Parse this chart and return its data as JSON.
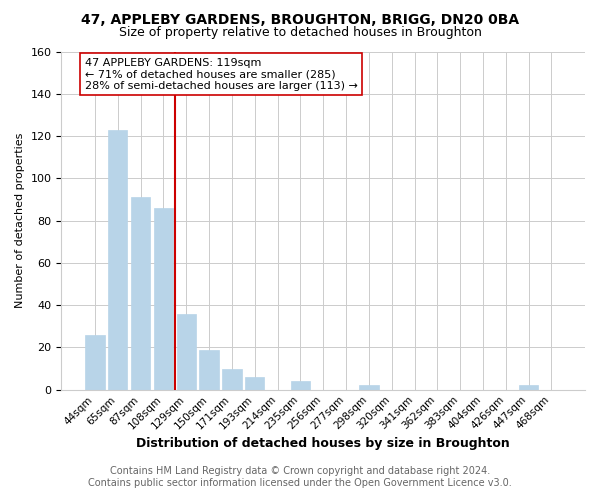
{
  "title": "47, APPLEBY GARDENS, BROUGHTON, BRIGG, DN20 0BA",
  "subtitle": "Size of property relative to detached houses in Broughton",
  "xlabel": "Distribution of detached houses by size in Broughton",
  "ylabel": "Number of detached properties",
  "bar_labels": [
    "44sqm",
    "65sqm",
    "87sqm",
    "108sqm",
    "129sqm",
    "150sqm",
    "171sqm",
    "193sqm",
    "214sqm",
    "235sqm",
    "256sqm",
    "277sqm",
    "298sqm",
    "320sqm",
    "341sqm",
    "362sqm",
    "383sqm",
    "404sqm",
    "426sqm",
    "447sqm",
    "468sqm"
  ],
  "bar_values": [
    26,
    123,
    91,
    86,
    36,
    19,
    10,
    6,
    0,
    4,
    0,
    0,
    2,
    0,
    0,
    0,
    0,
    0,
    0,
    2,
    0
  ],
  "bar_color": "#b8d4e8",
  "bar_edge_color": "#b8d4e8",
  "ylim": [
    0,
    160
  ],
  "yticks": [
    0,
    20,
    40,
    60,
    80,
    100,
    120,
    140,
    160
  ],
  "vline_color": "#cc0000",
  "annotation_title": "47 APPLEBY GARDENS: 119sqm",
  "annotation_line1": "← 71% of detached houses are smaller (285)",
  "annotation_line2": "28% of semi-detached houses are larger (113) →",
  "annotation_box_color": "#ffffff",
  "annotation_box_edge": "#cc0000",
  "footer1": "Contains HM Land Registry data © Crown copyright and database right 2024.",
  "footer2": "Contains public sector information licensed under the Open Government Licence v3.0.",
  "title_fontsize": 10,
  "subtitle_fontsize": 9,
  "annotation_fontsize": 8,
  "footer_fontsize": 7,
  "xlabel_fontsize": 9,
  "ylabel_fontsize": 8,
  "background_color": "#ffffff",
  "grid_color": "#cccccc"
}
